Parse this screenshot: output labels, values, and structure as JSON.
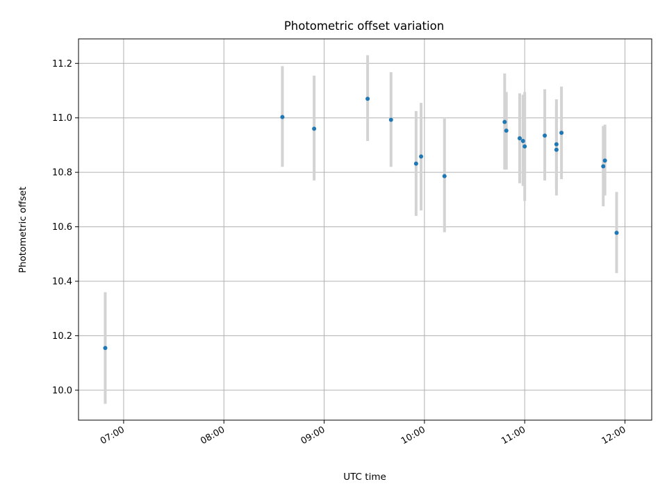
{
  "chart_data": {
    "type": "scatter",
    "title": "Photometric offset variation",
    "xlabel": "UTC time",
    "ylabel": "Photometric offset",
    "x_axis_type": "time",
    "xlim": [
      "06:33",
      "12:16"
    ],
    "ylim": [
      9.89,
      11.29
    ],
    "grid": true,
    "xticks": [
      "07:00",
      "08:00",
      "09:00",
      "10:00",
      "11:00",
      "12:00"
    ],
    "yticks": [
      10.0,
      10.2,
      10.4,
      10.6,
      10.8,
      11.0,
      11.2
    ],
    "marker_color": "#1f77b4",
    "errorbar_color": "#d3d3d3",
    "points": [
      {
        "x": "06:49",
        "y": 10.155,
        "lo": 9.95,
        "hi": 10.36
      },
      {
        "x": "08:35",
        "y": 11.003,
        "lo": 10.82,
        "hi": 11.19
      },
      {
        "x": "08:54",
        "y": 10.96,
        "lo": 10.77,
        "hi": 11.155
      },
      {
        "x": "09:26",
        "y": 11.07,
        "lo": 10.915,
        "hi": 11.23
      },
      {
        "x": "09:40",
        "y": 10.993,
        "lo": 10.82,
        "hi": 11.168
      },
      {
        "x": "09:55",
        "y": 10.832,
        "lo": 10.64,
        "hi": 11.025
      },
      {
        "x": "09:58",
        "y": 10.858,
        "lo": 10.66,
        "hi": 11.055
      },
      {
        "x": "10:12",
        "y": 10.786,
        "lo": 10.58,
        "hi": 10.997
      },
      {
        "x": "10:48",
        "y": 10.985,
        "lo": 10.81,
        "hi": 11.163
      },
      {
        "x": "10:49",
        "y": 10.953,
        "lo": 10.81,
        "hi": 11.095
      },
      {
        "x": "10:57",
        "y": 10.925,
        "lo": 10.76,
        "hi": 11.09
      },
      {
        "x": "10:59",
        "y": 10.915,
        "lo": 10.75,
        "hi": 11.085
      },
      {
        "x": "11:00",
        "y": 10.895,
        "lo": 10.695,
        "hi": 11.095
      },
      {
        "x": "11:12",
        "y": 10.935,
        "lo": 10.77,
        "hi": 11.105
      },
      {
        "x": "11:19",
        "y": 10.903,
        "lo": 10.74,
        "hi": 11.068
      },
      {
        "x": "11:19",
        "y": 10.883,
        "lo": 10.715,
        "hi": 11.05
      },
      {
        "x": "11:22",
        "y": 10.945,
        "lo": 10.775,
        "hi": 11.115
      },
      {
        "x": "11:47",
        "y": 10.822,
        "lo": 10.675,
        "hi": 10.97
      },
      {
        "x": "11:48",
        "y": 10.843,
        "lo": 10.715,
        "hi": 10.975
      },
      {
        "x": "11:55",
        "y": 10.578,
        "lo": 10.43,
        "hi": 10.728
      }
    ]
  }
}
